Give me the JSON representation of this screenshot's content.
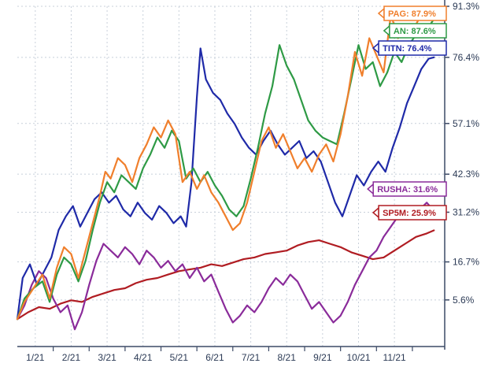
{
  "chart_data": {
    "type": "line",
    "title": "",
    "xlabel": "",
    "ylabel": "",
    "x_ticks": [
      "1/21",
      "2/21",
      "3/21",
      "4/21",
      "5/21",
      "6/21",
      "7/21",
      "8/21",
      "9/21",
      "10/21",
      "11/21"
    ],
    "y_ticks": [
      {
        "value": 5.6,
        "label": "5.6%"
      },
      {
        "value": 16.7,
        "label": "16.7%"
      },
      {
        "value": 31.2,
        "label": "31.2%"
      },
      {
        "value": 42.3,
        "label": "42.3%"
      },
      {
        "value": 57.1,
        "label": "57.1%"
      },
      {
        "value": 76.4,
        "label": "76.4%"
      },
      {
        "value": 91.3,
        "label": "91.3%"
      }
    ],
    "xlim": [
      0,
      11.9
    ],
    "ylim": [
      -8,
      91.3
    ],
    "grid": true,
    "series": [
      {
        "name": "PAG",
        "label": "PAG: 87.9%",
        "color": "#f07f2c",
        "points": [
          [
            0.0,
            0.0
          ],
          [
            0.2,
            5.0
          ],
          [
            0.45,
            9.0
          ],
          [
            0.7,
            13.0
          ],
          [
            0.9,
            6.0
          ],
          [
            1.1,
            15.0
          ],
          [
            1.3,
            21.0
          ],
          [
            1.5,
            19.0
          ],
          [
            1.7,
            12.0
          ],
          [
            1.9,
            20.0
          ],
          [
            2.1,
            28.0
          ],
          [
            2.3,
            36.0
          ],
          [
            2.45,
            43.0
          ],
          [
            2.6,
            41.0
          ],
          [
            2.8,
            47.0
          ],
          [
            3.0,
            45.0
          ],
          [
            3.2,
            40.0
          ],
          [
            3.4,
            47.0
          ],
          [
            3.6,
            51.0
          ],
          [
            3.8,
            56.0
          ],
          [
            4.0,
            53.0
          ],
          [
            4.2,
            58.0
          ],
          [
            4.4,
            54.0
          ],
          [
            4.6,
            40.0
          ],
          [
            4.8,
            43.0
          ],
          [
            5.0,
            38.0
          ],
          [
            5.2,
            42.0
          ],
          [
            5.4,
            37.0
          ],
          [
            5.6,
            34.0
          ],
          [
            5.8,
            30.0
          ],
          [
            6.0,
            26.0
          ],
          [
            6.2,
            28.0
          ],
          [
            6.4,
            34.0
          ],
          [
            6.6,
            43.0
          ],
          [
            6.8,
            52.0
          ],
          [
            7.0,
            56.0
          ],
          [
            7.2,
            50.0
          ],
          [
            7.4,
            54.0
          ],
          [
            7.6,
            49.0
          ],
          [
            7.8,
            44.0
          ],
          [
            8.0,
            47.0
          ],
          [
            8.2,
            43.0
          ],
          [
            8.4,
            48.0
          ],
          [
            8.6,
            51.0
          ],
          [
            8.8,
            46.0
          ],
          [
            9.0,
            54.0
          ],
          [
            9.2,
            65.0
          ],
          [
            9.4,
            78.0
          ],
          [
            9.6,
            71.0
          ],
          [
            9.8,
            82.0
          ],
          [
            10.0,
            77.0
          ],
          [
            10.2,
            72.0
          ],
          [
            10.4,
            89.0
          ],
          [
            10.6,
            82.0
          ],
          [
            10.8,
            86.0
          ],
          [
            11.0,
            84.0
          ],
          [
            11.2,
            88.0
          ],
          [
            11.4,
            90.5
          ],
          [
            11.6,
            87.9
          ]
        ]
      },
      {
        "name": "AN",
        "label": "AN: 87.6%",
        "color": "#2e9a45",
        "points": [
          [
            0.0,
            0.0
          ],
          [
            0.2,
            6.0
          ],
          [
            0.45,
            9.0
          ],
          [
            0.7,
            11.0
          ],
          [
            0.9,
            5.0
          ],
          [
            1.1,
            13.0
          ],
          [
            1.3,
            18.0
          ],
          [
            1.5,
            16.0
          ],
          [
            1.7,
            11.0
          ],
          [
            1.9,
            17.0
          ],
          [
            2.1,
            26.0
          ],
          [
            2.3,
            34.0
          ],
          [
            2.5,
            40.0
          ],
          [
            2.7,
            37.0
          ],
          [
            2.9,
            42.0
          ],
          [
            3.1,
            40.0
          ],
          [
            3.3,
            38.0
          ],
          [
            3.5,
            44.0
          ],
          [
            3.7,
            48.0
          ],
          [
            3.9,
            53.0
          ],
          [
            4.1,
            50.0
          ],
          [
            4.3,
            55.0
          ],
          [
            4.5,
            52.0
          ],
          [
            4.7,
            41.0
          ],
          [
            4.9,
            44.0
          ],
          [
            5.1,
            40.0
          ],
          [
            5.3,
            43.0
          ],
          [
            5.5,
            39.0
          ],
          [
            5.7,
            36.0
          ],
          [
            5.9,
            32.0
          ],
          [
            6.1,
            30.0
          ],
          [
            6.3,
            33.0
          ],
          [
            6.5,
            41.0
          ],
          [
            6.7,
            50.0
          ],
          [
            6.9,
            60.0
          ],
          [
            7.1,
            68.0
          ],
          [
            7.3,
            80.0
          ],
          [
            7.5,
            74.0
          ],
          [
            7.7,
            70.0
          ],
          [
            7.9,
            64.0
          ],
          [
            8.1,
            58.0
          ],
          [
            8.3,
            55.0
          ],
          [
            8.5,
            53.0
          ],
          [
            8.7,
            52.0
          ],
          [
            8.9,
            51.0
          ],
          [
            9.1,
            60.0
          ],
          [
            9.3,
            70.0
          ],
          [
            9.5,
            80.0
          ],
          [
            9.7,
            73.0
          ],
          [
            9.9,
            75.0
          ],
          [
            10.1,
            68.0
          ],
          [
            10.3,
            72.0
          ],
          [
            10.5,
            78.0
          ],
          [
            10.7,
            75.0
          ],
          [
            10.9,
            80.0
          ],
          [
            11.1,
            83.0
          ],
          [
            11.3,
            85.0
          ],
          [
            11.5,
            86.0
          ],
          [
            11.6,
            87.6
          ]
        ]
      },
      {
        "name": "TITN",
        "label": "TITN: 76.4%",
        "color": "#1f2aa8",
        "points": [
          [
            0.0,
            0.0
          ],
          [
            0.15,
            12.0
          ],
          [
            0.35,
            16.0
          ],
          [
            0.55,
            10.0
          ],
          [
            0.75,
            14.0
          ],
          [
            0.95,
            18.0
          ],
          [
            1.15,
            26.0
          ],
          [
            1.35,
            30.0
          ],
          [
            1.55,
            33.0
          ],
          [
            1.75,
            27.0
          ],
          [
            1.95,
            31.0
          ],
          [
            2.15,
            35.0
          ],
          [
            2.35,
            37.0
          ],
          [
            2.55,
            34.0
          ],
          [
            2.75,
            36.0
          ],
          [
            2.95,
            32.0
          ],
          [
            3.15,
            30.0
          ],
          [
            3.35,
            34.0
          ],
          [
            3.55,
            31.0
          ],
          [
            3.75,
            29.0
          ],
          [
            3.95,
            33.0
          ],
          [
            4.15,
            31.0
          ],
          [
            4.35,
            28.0
          ],
          [
            4.55,
            30.0
          ],
          [
            4.7,
            27.0
          ],
          [
            4.85,
            40.0
          ],
          [
            5.0,
            65.0
          ],
          [
            5.1,
            79.0
          ],
          [
            5.25,
            70.0
          ],
          [
            5.45,
            66.0
          ],
          [
            5.65,
            64.0
          ],
          [
            5.85,
            60.0
          ],
          [
            6.05,
            57.0
          ],
          [
            6.25,
            53.0
          ],
          [
            6.45,
            50.0
          ],
          [
            6.65,
            48.0
          ],
          [
            6.85,
            52.0
          ],
          [
            7.05,
            55.0
          ],
          [
            7.25,
            51.0
          ],
          [
            7.45,
            48.0
          ],
          [
            7.65,
            50.0
          ],
          [
            7.85,
            52.0
          ],
          [
            8.05,
            47.0
          ],
          [
            8.25,
            49.0
          ],
          [
            8.45,
            46.0
          ],
          [
            8.65,
            40.0
          ],
          [
            8.85,
            34.0
          ],
          [
            9.05,
            30.0
          ],
          [
            9.25,
            36.0
          ],
          [
            9.45,
            42.0
          ],
          [
            9.65,
            39.0
          ],
          [
            9.85,
            43.0
          ],
          [
            10.05,
            46.0
          ],
          [
            10.25,
            43.0
          ],
          [
            10.45,
            50.0
          ],
          [
            10.65,
            56.0
          ],
          [
            10.85,
            63.0
          ],
          [
            11.05,
            68.0
          ],
          [
            11.25,
            73.0
          ],
          [
            11.45,
            76.0
          ],
          [
            11.6,
            76.4
          ]
        ]
      },
      {
        "name": "RUSHA",
        "label": "RUSHA: 31.6%",
        "color": "#8a2b9a",
        "points": [
          [
            0.0,
            0.0
          ],
          [
            0.2,
            4.0
          ],
          [
            0.4,
            10.0
          ],
          [
            0.6,
            14.0
          ],
          [
            0.8,
            12.0
          ],
          [
            1.0,
            6.0
          ],
          [
            1.2,
            2.0
          ],
          [
            1.4,
            4.0
          ],
          [
            1.6,
            -3.0
          ],
          [
            1.8,
            2.0
          ],
          [
            2.0,
            10.0
          ],
          [
            2.2,
            17.0
          ],
          [
            2.4,
            22.0
          ],
          [
            2.6,
            20.0
          ],
          [
            2.8,
            18.0
          ],
          [
            3.0,
            21.0
          ],
          [
            3.2,
            19.0
          ],
          [
            3.4,
            16.0
          ],
          [
            3.6,
            20.0
          ],
          [
            3.8,
            18.0
          ],
          [
            4.0,
            15.0
          ],
          [
            4.2,
            17.0
          ],
          [
            4.4,
            14.0
          ],
          [
            4.6,
            16.0
          ],
          [
            4.8,
            12.0
          ],
          [
            5.0,
            15.0
          ],
          [
            5.2,
            11.0
          ],
          [
            5.4,
            13.0
          ],
          [
            5.6,
            8.0
          ],
          [
            5.8,
            3.0
          ],
          [
            6.0,
            -1.0
          ],
          [
            6.2,
            1.0
          ],
          [
            6.4,
            4.0
          ],
          [
            6.6,
            2.0
          ],
          [
            6.8,
            5.0
          ],
          [
            7.0,
            9.0
          ],
          [
            7.2,
            12.0
          ],
          [
            7.4,
            10.0
          ],
          [
            7.6,
            13.0
          ],
          [
            7.8,
            11.0
          ],
          [
            8.0,
            7.0
          ],
          [
            8.2,
            3.0
          ],
          [
            8.4,
            5.0
          ],
          [
            8.6,
            2.0
          ],
          [
            8.8,
            -1.0
          ],
          [
            9.0,
            1.0
          ],
          [
            9.2,
            5.0
          ],
          [
            9.4,
            10.0
          ],
          [
            9.6,
            14.0
          ],
          [
            9.8,
            18.0
          ],
          [
            10.0,
            20.0
          ],
          [
            10.2,
            24.0
          ],
          [
            10.4,
            27.0
          ],
          [
            10.6,
            30.0
          ],
          [
            10.8,
            33.0
          ],
          [
            11.0,
            30.0
          ],
          [
            11.2,
            32.0
          ],
          [
            11.4,
            34.0
          ],
          [
            11.6,
            31.6
          ]
        ]
      },
      {
        "name": "SP5M",
        "label": "SP5M: 25.9%",
        "color": "#b01c22",
        "points": [
          [
            0.0,
            0.0
          ],
          [
            0.3,
            2.0
          ],
          [
            0.6,
            3.5
          ],
          [
            0.9,
            3.0
          ],
          [
            1.2,
            4.5
          ],
          [
            1.5,
            5.5
          ],
          [
            1.8,
            5.0
          ],
          [
            2.1,
            6.5
          ],
          [
            2.4,
            7.5
          ],
          [
            2.7,
            8.5
          ],
          [
            3.0,
            9.0
          ],
          [
            3.3,
            10.5
          ],
          [
            3.6,
            11.5
          ],
          [
            3.9,
            12.0
          ],
          [
            4.2,
            13.0
          ],
          [
            4.5,
            14.0
          ],
          [
            4.8,
            14.5
          ],
          [
            5.1,
            15.0
          ],
          [
            5.4,
            16.0
          ],
          [
            5.7,
            15.5
          ],
          [
            6.0,
            16.5
          ],
          [
            6.3,
            17.5
          ],
          [
            6.6,
            18.0
          ],
          [
            6.9,
            19.0
          ],
          [
            7.2,
            19.5
          ],
          [
            7.5,
            20.0
          ],
          [
            7.8,
            21.5
          ],
          [
            8.1,
            22.5
          ],
          [
            8.4,
            23.0
          ],
          [
            8.7,
            22.0
          ],
          [
            9.0,
            21.0
          ],
          [
            9.3,
            19.5
          ],
          [
            9.6,
            18.5
          ],
          [
            9.9,
            17.5
          ],
          [
            10.2,
            18.0
          ],
          [
            10.5,
            20.0
          ],
          [
            10.8,
            22.0
          ],
          [
            11.1,
            24.0
          ],
          [
            11.4,
            25.0
          ],
          [
            11.6,
            25.9
          ]
        ]
      }
    ]
  }
}
